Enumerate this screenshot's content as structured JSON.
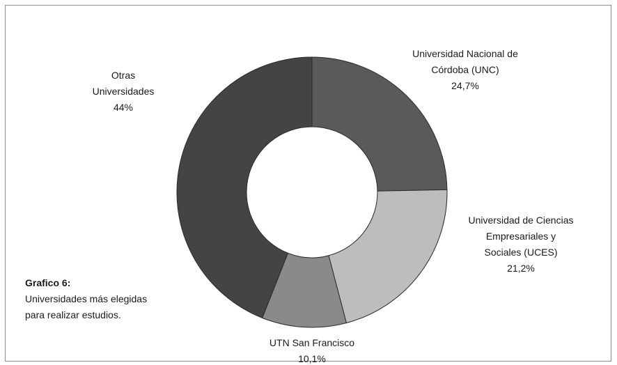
{
  "chart_data": {
    "type": "donut",
    "categories": [
      "Universidad Nacional de Córdoba (UNC)",
      "Universidad de Ciencias Empresariales y Sociales (UCES)",
      "UTN San Francisco",
      "Otras Universidades"
    ],
    "values": [
      24.7,
      21.2,
      10.1,
      44
    ],
    "value_labels": [
      "24,7%",
      "21,2%",
      "10,1%",
      "44%"
    ],
    "colors": [
      "#5a5a5a",
      "#bdbdbd",
      "#8a8a8a",
      "#444444"
    ],
    "annotations": {
      "caption_title": "Grafico 6:",
      "caption_text": "Universidades más elegidas para realizar estudios."
    }
  }
}
